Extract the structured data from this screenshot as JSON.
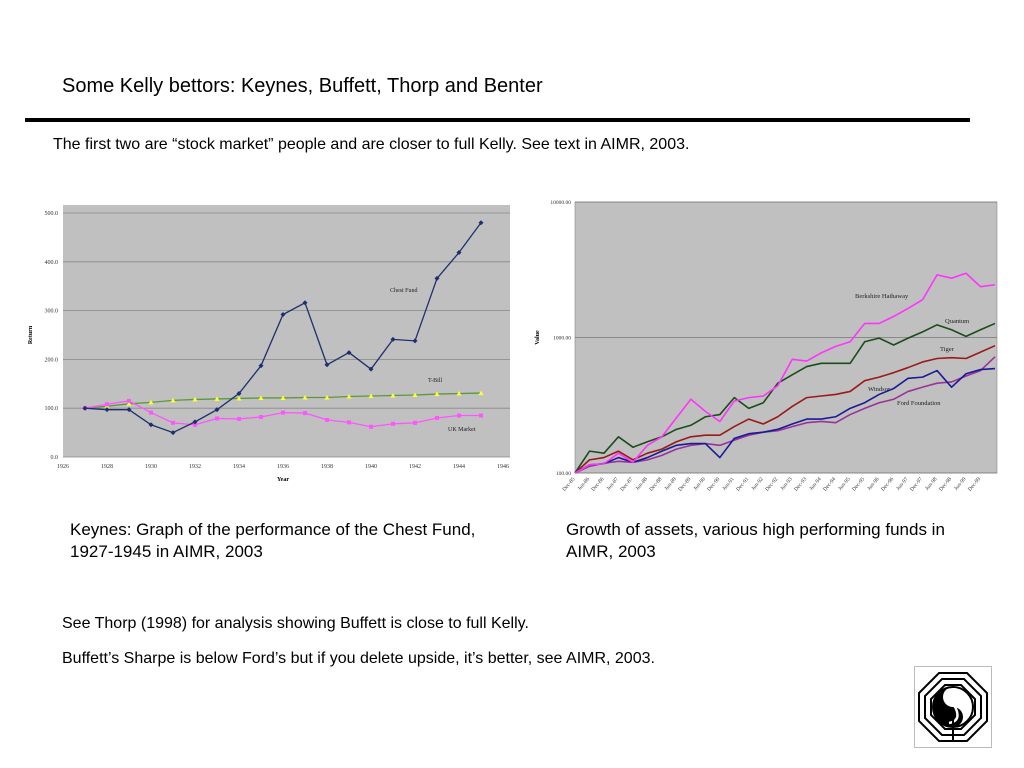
{
  "slide": {
    "title": "Some Kelly bettors:  Keynes, Buffett, Thorp and Benter",
    "subtitle": "The first two are “stock market” people and are closer to full Kelly.  See text in AIMR, 2003.",
    "caption_left": "Keynes:  Graph of the performance of the Chest Fund, 1927-1945 in AIMR, 2003",
    "caption_right": "Growth of assets, various high performing funds in AIMR, 2003",
    "note1": "See Thorp (1998) for analysis showing Buffett is close to full Kelly.",
    "note2": "Buffett’s Sharpe is below Ford’s but if you delete upside, it’s better, see AIMR, 2003."
  },
  "chart_data": [
    {
      "type": "line",
      "title": "",
      "xlabel": "Year",
      "ylabel": "Return",
      "xlim": [
        1926,
        1946
      ],
      "ylim": [
        0,
        500
      ],
      "xticks": [
        "1926",
        "1928",
        "1930",
        "1932",
        "1934",
        "1936",
        "1938",
        "1940",
        "1942",
        "1944",
        "1946"
      ],
      "yticks": [
        "0.0",
        "100.0",
        "200.0",
        "300.0",
        "400.0",
        "500.0"
      ],
      "grid": true,
      "x": [
        1927,
        1928,
        1929,
        1930,
        1931,
        1932,
        1933,
        1934,
        1935,
        1936,
        1937,
        1938,
        1939,
        1940,
        1941,
        1942,
        1943,
        1944,
        1945
      ],
      "series": [
        {
          "name": "Chest Fund",
          "color": "#1f2f6e",
          "marker": "diamond",
          "values": [
            100,
            97,
            97,
            66,
            50,
            72,
            97,
            130,
            187,
            292,
            316,
            189,
            214,
            180,
            241,
            238,
            366,
            419,
            480
          ]
        },
        {
          "name": "T-Bill",
          "color": "#ffff33",
          "line_color": "#5a9a3a",
          "marker": "triangle",
          "values": [
            100,
            104,
            109,
            112,
            116,
            118,
            119,
            120,
            121,
            121,
            122,
            122,
            124,
            125,
            126,
            127,
            129,
            130,
            131
          ]
        },
        {
          "name": "UK Market",
          "color": "#ff55ff",
          "marker": "square",
          "values": [
            100,
            108,
            115,
            91,
            70,
            66,
            79,
            78,
            82,
            91,
            90,
            76,
            71,
            62,
            68,
            70,
            80,
            85,
            85
          ]
        }
      ]
    },
    {
      "type": "line",
      "title": "",
      "xlabel": "",
      "ylabel": "Value",
      "yscale": "log",
      "ylim": [
        100,
        10000
      ],
      "yticks": [
        "100.00",
        "1000.00",
        "10000.00"
      ],
      "xticks": [
        "Dec-85",
        "Jun-86",
        "Dec-86",
        "Jun-87",
        "Dec-87",
        "Jun-88",
        "Dec-88",
        "Jun-89",
        "Dec-89",
        "Jun-90",
        "Dec-90",
        "Jun-91",
        "Dec-91",
        "Jun-92",
        "Dec-92",
        "Jun-93",
        "Dec-93",
        "Jun-94",
        "Dec-94",
        "Jun-95",
        "Dec-95",
        "Jun-96",
        "Dec-96",
        "Jun-97",
        "Dec-97",
        "Jun-98",
        "Dec-98",
        "Jun-99",
        "Dec-99"
      ],
      "x_period_count": 30,
      "series": [
        {
          "name": "Berkshire Hathaway",
          "color": "#ff33ff",
          "values": [
            100,
            115,
            117,
            140,
            120,
            160,
            185,
            255,
            350,
            285,
            240,
            340,
            360,
            370,
            440,
            690,
            670,
            770,
            860,
            930,
            1270,
            1270,
            1430,
            1640,
            1900,
            2900,
            2740,
            2980,
            2370,
            2450
          ]
        },
        {
          "name": "Quantum",
          "color": "#1a4d1a",
          "values": [
            100,
            145,
            140,
            185,
            155,
            170,
            185,
            210,
            225,
            260,
            270,
            360,
            300,
            330,
            460,
            530,
            610,
            645,
            645,
            645,
            930,
            990,
            880,
            990,
            1100,
            1240,
            1140,
            1020,
            1140,
            1270
          ]
        },
        {
          "name": "Tiger",
          "color": "#991a1a",
          "values": [
            100,
            125,
            130,
            145,
            125,
            140,
            150,
            170,
            185,
            190,
            190,
            220,
            250,
            230,
            260,
            310,
            360,
            370,
            380,
            400,
            480,
            510,
            550,
            600,
            660,
            700,
            710,
            700,
            780,
            870
          ]
        },
        {
          "name": "Windsor",
          "color": "#1a1a99",
          "values": [
            100,
            115,
            117,
            130,
            120,
            130,
            145,
            160,
            165,
            165,
            130,
            180,
            195,
            200,
            210,
            230,
            250,
            250,
            260,
            300,
            330,
            380,
            420,
            500,
            510,
            570,
            430,
            540,
            580,
            590
          ]
        },
        {
          "name": "Ford Foundation",
          "color": "#993399",
          "values": [
            100,
            112,
            118,
            122,
            120,
            125,
            135,
            150,
            160,
            165,
            160,
            175,
            190,
            200,
            205,
            220,
            235,
            240,
            235,
            270,
            300,
            330,
            350,
            400,
            430,
            460,
            470,
            520,
            570,
            720
          ]
        }
      ]
    }
  ]
}
